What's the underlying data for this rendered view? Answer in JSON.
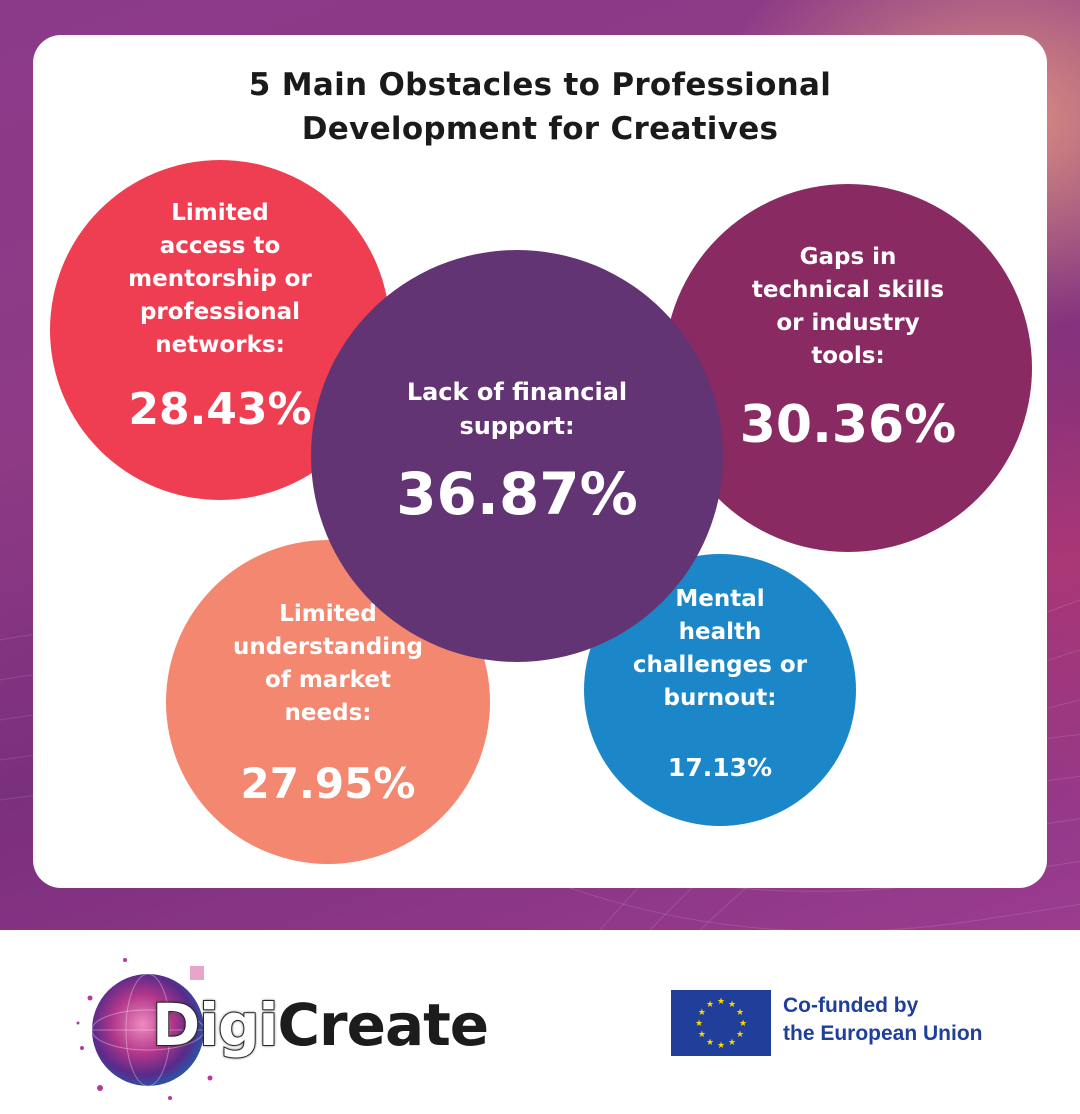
{
  "title": {
    "line1": "5 Main Obstacles to Professional",
    "line2": "Development for Creatives"
  },
  "chart_data": {
    "type": "bubble",
    "title": "5 Main Obstacles to Professional Development for Creatives",
    "unit": "%",
    "items": [
      {
        "label_lines": [
          "Limited",
          "access to",
          "mentorship or",
          "professional",
          "networks:"
        ],
        "value": 28.43,
        "value_text": "28.43%",
        "color": "#ef3e52"
      },
      {
        "label_lines": [
          "Gaps in",
          "technical skills",
          "or industry",
          "tools:"
        ],
        "value": 30.36,
        "value_text": "30.36%",
        "color": "#8a2a62"
      },
      {
        "label_lines": [
          "Limited",
          "understanding",
          "of market",
          "needs:"
        ],
        "value": 27.95,
        "value_text": "27.95%",
        "color": "#f4876f"
      },
      {
        "label_lines": [
          "Mental",
          "health",
          "challenges or",
          "burnout:"
        ],
        "value": 17.13,
        "value_text": "17.13%",
        "color": "#1b87c8"
      },
      {
        "label_lines": [
          "Lack of financial",
          "support:"
        ],
        "value": 36.87,
        "value_text": "36.87%",
        "color": "#623473"
      }
    ]
  },
  "footer": {
    "logo_part1": "Digi",
    "logo_part2": "Create",
    "eu_line1": "Co-funded by",
    "eu_line2": "the European Union"
  },
  "icons": {
    "logo": "digicreate-globe-icon",
    "eu_flag": "eu-flag-icon"
  }
}
